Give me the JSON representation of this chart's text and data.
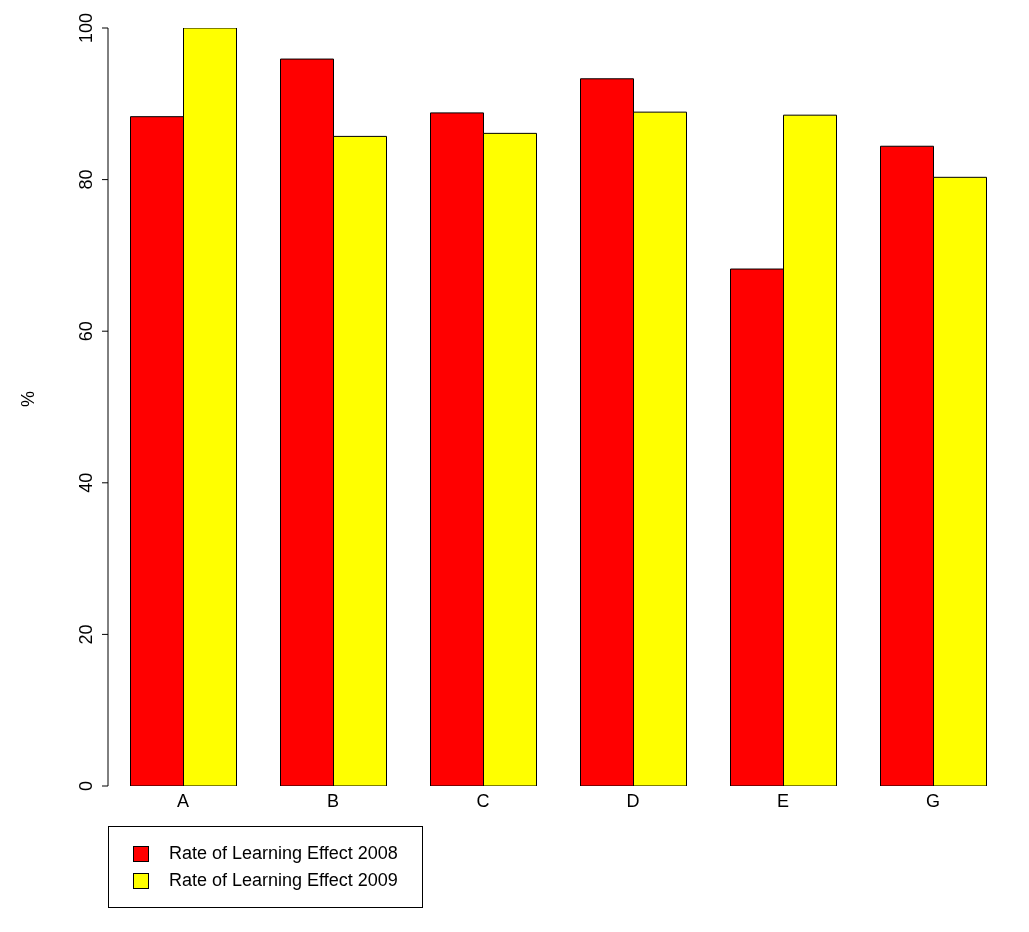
{
  "chart_data": {
    "type": "bar",
    "ylabel": "%",
    "categories": [
      "A",
      "B",
      "C",
      "D",
      "E",
      "G"
    ],
    "series": [
      {
        "name": "Rate of Learning Effect 2008",
        "color": "#ff0000",
        "values": [
          88.3,
          95.9,
          88.8,
          93.3,
          68.2,
          84.4
        ]
      },
      {
        "name": "Rate of Learning Effect 2009",
        "color": "#ffff00",
        "values": [
          100,
          85.7,
          86.1,
          88.9,
          88.5,
          80.3
        ]
      }
    ],
    "ylim": [
      0,
      100
    ],
    "yticks": [
      0,
      20,
      40,
      60,
      80,
      100
    ],
    "grid": false,
    "legend": "bottom left"
  }
}
